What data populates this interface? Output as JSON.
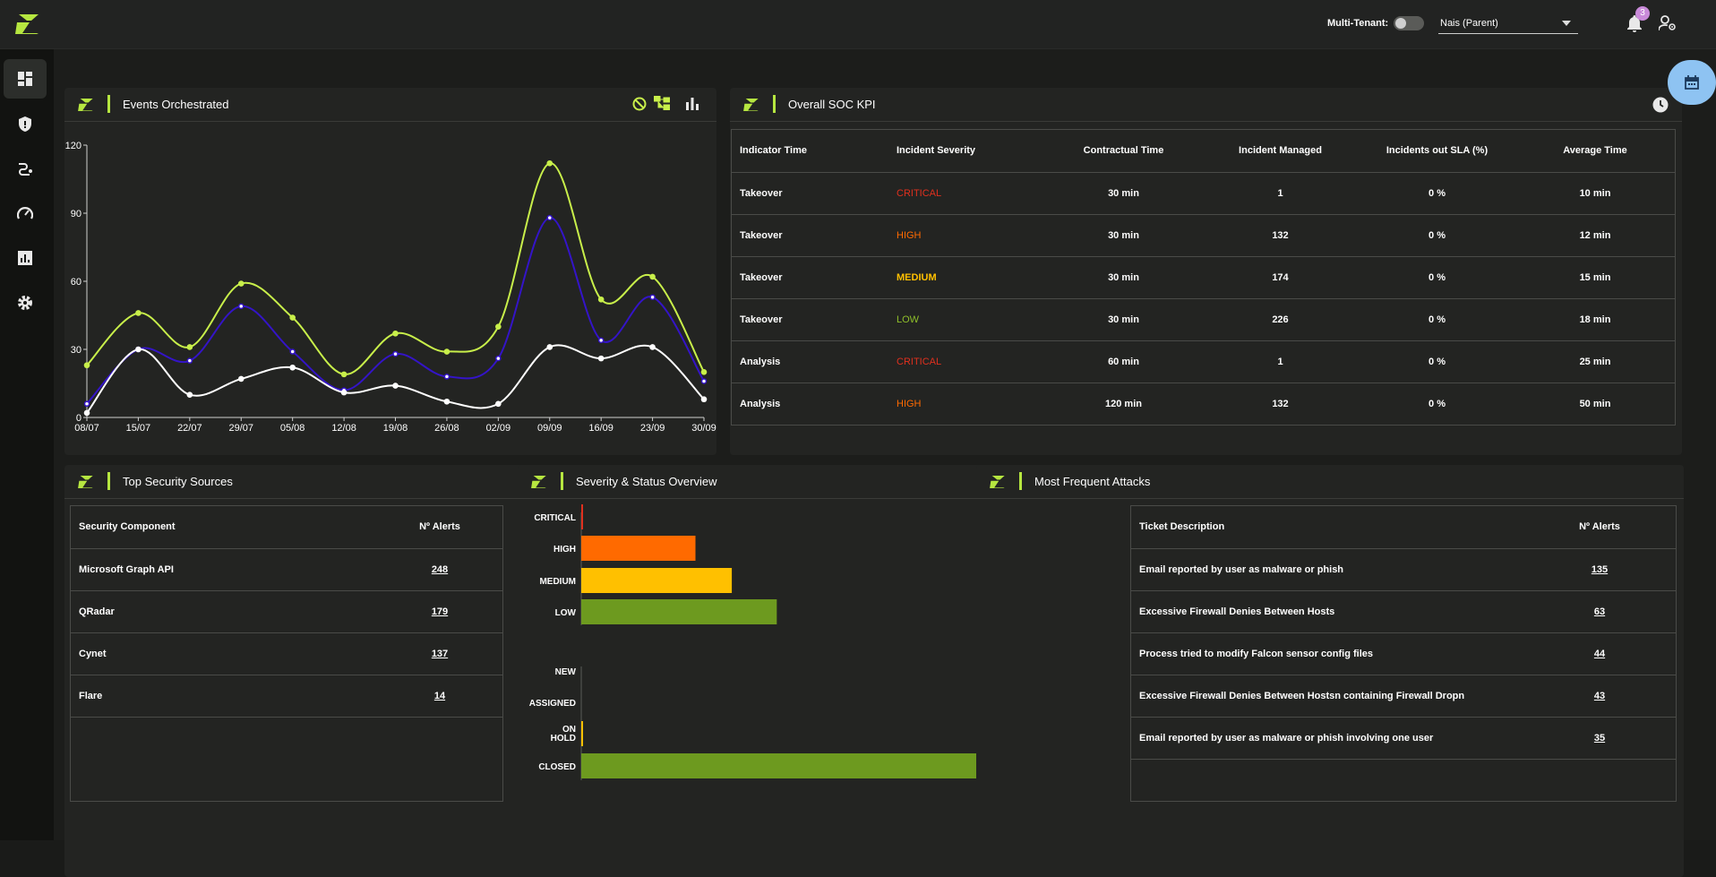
{
  "header": {
    "multi_tenant_label": "Multi-Tenant:",
    "tenant_value": "Nais (Parent)",
    "notification_count": "3"
  },
  "events": {
    "title": "Events Orchestrated"
  },
  "kpi": {
    "title": "Overall SOC KPI",
    "columns": [
      "Indicator Time",
      "Incident Severity",
      "Contractual Time",
      "Incident Managed",
      "Incidents out SLA (%)",
      "Average Time"
    ],
    "rows": [
      {
        "indicator": "Takeover",
        "severity": "CRITICAL",
        "contractual": "30 min",
        "managed": "1",
        "out_sla": "0 %",
        "avg": "10 min"
      },
      {
        "indicator": "Takeover",
        "severity": "HIGH",
        "contractual": "30 min",
        "managed": "132",
        "out_sla": "0 %",
        "avg": "12 min"
      },
      {
        "indicator": "Takeover",
        "severity": "MEDIUM",
        "contractual": "30 min",
        "managed": "174",
        "out_sla": "0 %",
        "avg": "15 min"
      },
      {
        "indicator": "Takeover",
        "severity": "LOW",
        "contractual": "30 min",
        "managed": "226",
        "out_sla": "0 %",
        "avg": "18 min"
      },
      {
        "indicator": "Analysis",
        "severity": "CRITICAL",
        "contractual": "60 min",
        "managed": "1",
        "out_sla": "0 %",
        "avg": "25 min"
      },
      {
        "indicator": "Analysis",
        "severity": "HIGH",
        "contractual": "120 min",
        "managed": "132",
        "out_sla": "0 %",
        "avg": "50 min"
      }
    ]
  },
  "sources": {
    "title": "Top Security Sources",
    "col1": "Security Component",
    "col2": "Nº Alerts",
    "rows": [
      {
        "name": "Microsoft Graph API",
        "count": "248"
      },
      {
        "name": "QRadar",
        "count": "179"
      },
      {
        "name": "Cynet",
        "count": "137"
      },
      {
        "name": "Flare",
        "count": "14"
      }
    ]
  },
  "severity": {
    "title": "Severity & Status Overview"
  },
  "attacks": {
    "title": "Most Frequent Attacks",
    "col1": "Ticket Description",
    "col2": "Nº Alerts",
    "rows": [
      {
        "name": "Email reported by user as malware or phish",
        "count": "135"
      },
      {
        "name": "Excessive Firewall Denies Between Hosts",
        "count": "63"
      },
      {
        "name": "Process tried to modify Falcon sensor config files",
        "count": "44"
      },
      {
        "name": "Excessive Firewall Denies Between Hostsn containing Firewall Dropn",
        "count": "43"
      },
      {
        "name": "Email reported by user as malware or phish involving one user",
        "count": "35"
      }
    ]
  },
  "colors": {
    "accent": "#b6e640",
    "critical": "#e0301e",
    "high": "#ff6a00",
    "medium": "#ffc000",
    "low": "#6d9a1f"
  },
  "chart_data": [
    {
      "type": "line",
      "title": "Events Orchestrated",
      "categories": [
        "08/07",
        "15/07",
        "22/07",
        "29/07",
        "05/08",
        "12/08",
        "19/08",
        "26/08",
        "02/09",
        "09/09",
        "16/09",
        "23/09",
        "30/09"
      ],
      "ylim": [
        0,
        120
      ],
      "yticks": [
        0,
        30,
        60,
        90,
        120
      ],
      "series": [
        {
          "name": "series-green",
          "color": "#c8ef4a",
          "values": [
            23,
            46,
            31,
            59,
            44,
            19,
            37,
            29,
            40,
            112,
            52,
            62,
            20
          ]
        },
        {
          "name": "series-blue",
          "color": "#3414c8",
          "values": [
            6,
            30,
            25,
            49,
            29,
            12,
            28,
            18,
            26,
            88,
            34,
            53,
            16
          ]
        },
        {
          "name": "series-white",
          "color": "#ffffff",
          "values": [
            2,
            30,
            10,
            17,
            22,
            11,
            14,
            7,
            6,
            31,
            26,
            31,
            8
          ]
        }
      ]
    },
    {
      "type": "bar",
      "title": "Severity & Status Overview",
      "orientation": "horizontal",
      "groups": [
        {
          "name": "severity",
          "categories": [
            "CRITICAL",
            "HIGH",
            "MEDIUM",
            "LOW"
          ],
          "values": [
            1,
            132,
            174,
            226
          ],
          "colors": [
            "#e0301e",
            "#ff6a00",
            "#ffc000",
            "#6d9a1f"
          ]
        },
        {
          "name": "status",
          "categories": [
            "NEW",
            "ASSIGNED",
            "ON HOLD",
            "CLOSED"
          ],
          "values": [
            0,
            0,
            2,
            530
          ],
          "colors": [
            "#6d9a1f",
            "#6d9a1f",
            "#ffc000",
            "#6d9a1f"
          ]
        }
      ]
    }
  ]
}
